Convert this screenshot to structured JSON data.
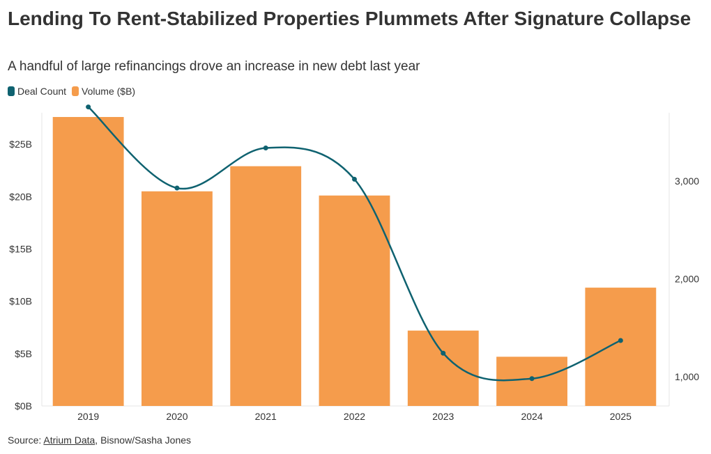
{
  "title": "Lending To Rent-Stabilized Properties Plummets After Signature Collapse",
  "subtitle": "A handful of large refinancings drove an increase in new debt last year",
  "source": {
    "prefix": "Source: ",
    "link_text": "Atrium Data",
    "suffix": ", Bisnow/Sasha Jones"
  },
  "colors": {
    "volume": "#f59c4c",
    "deal_count": "#0f6270",
    "grid": "#e6e6e6",
    "text": "#333333"
  },
  "chart_data": {
    "type": "bar",
    "categories": [
      "2019",
      "2020",
      "2021",
      "2022",
      "2023",
      "2024",
      "2025"
    ],
    "series": [
      {
        "name": "Volume ($B)",
        "type": "bar",
        "axis": "left",
        "values": [
          27.6,
          20.5,
          22.9,
          20.1,
          7.2,
          4.7,
          11.3
        ]
      },
      {
        "name": "Deal Count",
        "type": "line",
        "axis": "right",
        "values": [
          3760,
          2930,
          3340,
          3020,
          1240,
          980,
          1370
        ]
      }
    ],
    "legend": [
      "Deal Count",
      "Volume ($B)"
    ],
    "legend_position": "top-left",
    "left_axis": {
      "ylim": [
        0,
        28
      ],
      "ticks": [
        0,
        5,
        10,
        15,
        20,
        25
      ],
      "tick_labels": [
        "$0B",
        "$5B",
        "$10B",
        "$15B",
        "$20B",
        "$25B"
      ]
    },
    "right_axis": {
      "ylim": [
        700,
        3700
      ],
      "ticks": [
        1000,
        2000,
        3000
      ],
      "tick_labels": [
        "1,000",
        "2,000",
        "3,000"
      ]
    },
    "xlabel": "",
    "ylabel": ""
  }
}
